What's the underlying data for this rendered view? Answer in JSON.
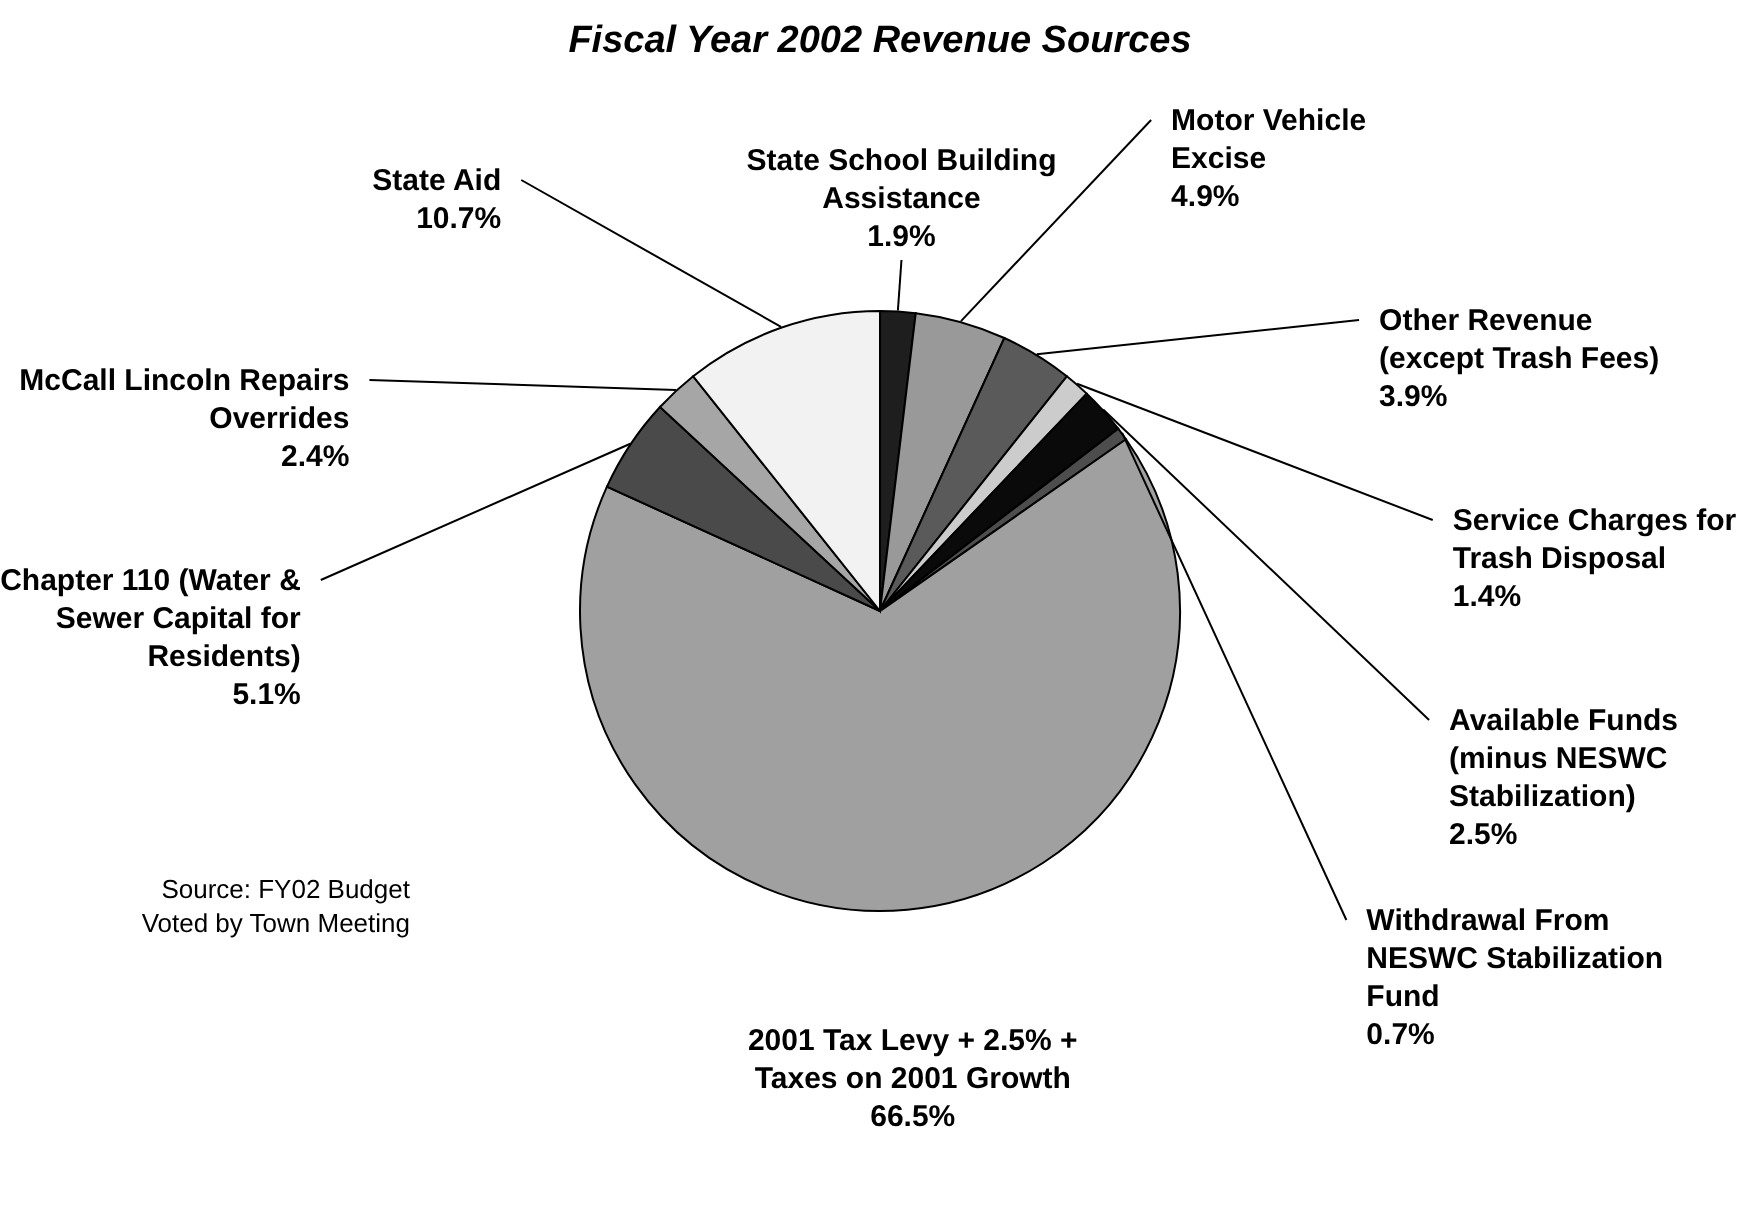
{
  "chart_data": {
    "type": "pie",
    "title": "Fiscal Year 2002 Revenue Sources",
    "categories": [
      "State School Building Assistance",
      "Motor Vehicle Excise",
      "Other Revenue (except Trash Fees)",
      "Service Charges for Trash Disposal",
      "Available Funds (minus NESWC Stabilization)",
      "Withdrawal From NESWC Stabilization Fund",
      "2001 Tax Levy + 2.5% + Taxes on 2001 Growth",
      "Chapter 110 (Water & Sewer Capital for Residents)",
      "McCall Lincoln Repairs Overrides",
      "State Aid"
    ],
    "values": [
      1.9,
      4.9,
      3.9,
      1.4,
      2.5,
      0.7,
      66.5,
      5.1,
      2.4,
      10.7
    ],
    "value_labels": [
      "1.9%",
      "4.9%",
      "3.9%",
      "1.4%",
      "2.5%",
      "0.7%",
      "66.5%",
      "5.1%",
      "2.4%",
      "10.7%"
    ],
    "colors": [
      "#1e1e1e",
      "#999999",
      "#5a5a5a",
      "#cccccc",
      "#0a0a0a",
      "#4d4d4d",
      "#a0a0a0",
      "#4a4a4a",
      "#a6a6a6",
      "#f2f2f2"
    ],
    "annotations": [
      "Source: FY02 Budget Voted by Town Meeting"
    ]
  }
}
